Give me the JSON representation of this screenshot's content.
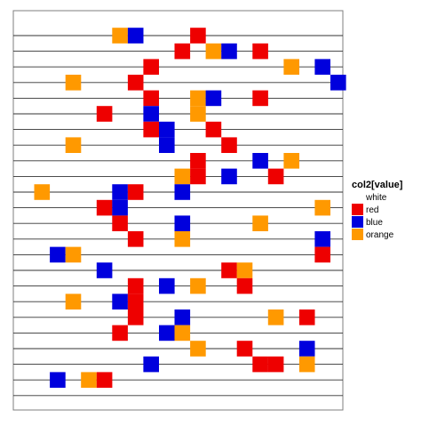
{
  "chart_data": {
    "type": "heatmap",
    "title": "",
    "xlabel": "",
    "ylabel": "",
    "legend": {
      "title": "col2[value]",
      "position": "right",
      "entries": [
        {
          "label": "white",
          "color": "#FFFFFF"
        },
        {
          "label": "red",
          "color": "#EE0000"
        },
        {
          "label": "blue",
          "color": "#0000DD"
        },
        {
          "label": "orange",
          "color": "#FF9900"
        }
      ]
    },
    "axes_visible": false,
    "horizontal_lines": 24,
    "rows": 24,
    "columns": 21,
    "cells": [
      {
        "row": 1,
        "col": 7,
        "value": "orange"
      },
      {
        "row": 1,
        "col": 8,
        "value": "blue"
      },
      {
        "row": 1,
        "col": 12,
        "value": "red"
      },
      {
        "row": 2,
        "col": 11,
        "value": "red"
      },
      {
        "row": 2,
        "col": 13,
        "value": "orange"
      },
      {
        "row": 2,
        "col": 14,
        "value": "blue"
      },
      {
        "row": 2,
        "col": 16,
        "value": "red"
      },
      {
        "row": 3,
        "col": 9,
        "value": "red"
      },
      {
        "row": 3,
        "col": 18,
        "value": "orange"
      },
      {
        "row": 3,
        "col": 20,
        "value": "blue"
      },
      {
        "row": 4,
        "col": 4,
        "value": "orange"
      },
      {
        "row": 4,
        "col": 8,
        "value": "red"
      },
      {
        "row": 4,
        "col": 21,
        "value": "blue"
      },
      {
        "row": 5,
        "col": 9,
        "value": "red"
      },
      {
        "row": 5,
        "col": 12,
        "value": "orange"
      },
      {
        "row": 5,
        "col": 13,
        "value": "blue"
      },
      {
        "row": 5,
        "col": 16,
        "value": "red"
      },
      {
        "row": 6,
        "col": 6,
        "value": "red"
      },
      {
        "row": 6,
        "col": 9,
        "value": "blue"
      },
      {
        "row": 6,
        "col": 12,
        "value": "orange"
      },
      {
        "row": 7,
        "col": 9,
        "value": "red"
      },
      {
        "row": 7,
        "col": 10,
        "value": "blue"
      },
      {
        "row": 7,
        "col": 13,
        "value": "red"
      },
      {
        "row": 8,
        "col": 4,
        "value": "orange"
      },
      {
        "row": 8,
        "col": 10,
        "value": "blue"
      },
      {
        "row": 8,
        "col": 14,
        "value": "red"
      },
      {
        "row": 9,
        "col": 12,
        "value": "red"
      },
      {
        "row": 9,
        "col": 16,
        "value": "blue"
      },
      {
        "row": 9,
        "col": 18,
        "value": "orange"
      },
      {
        "row": 10,
        "col": 11,
        "value": "orange"
      },
      {
        "row": 10,
        "col": 12,
        "value": "red"
      },
      {
        "row": 10,
        "col": 14,
        "value": "blue"
      },
      {
        "row": 10,
        "col": 17,
        "value": "red"
      },
      {
        "row": 11,
        "col": 2,
        "value": "orange"
      },
      {
        "row": 11,
        "col": 7,
        "value": "blue"
      },
      {
        "row": 11,
        "col": 8,
        "value": "red"
      },
      {
        "row": 11,
        "col": 11,
        "value": "blue"
      },
      {
        "row": 12,
        "col": 6,
        "value": "red"
      },
      {
        "row": 12,
        "col": 7,
        "value": "blue"
      },
      {
        "row": 12,
        "col": 20,
        "value": "orange"
      },
      {
        "row": 13,
        "col": 7,
        "value": "red"
      },
      {
        "row": 13,
        "col": 11,
        "value": "blue"
      },
      {
        "row": 13,
        "col": 16,
        "value": "orange"
      },
      {
        "row": 14,
        "col": 8,
        "value": "red"
      },
      {
        "row": 14,
        "col": 11,
        "value": "orange"
      },
      {
        "row": 14,
        "col": 20,
        "value": "blue"
      },
      {
        "row": 15,
        "col": 3,
        "value": "blue"
      },
      {
        "row": 15,
        "col": 4,
        "value": "orange"
      },
      {
        "row": 15,
        "col": 20,
        "value": "red"
      },
      {
        "row": 16,
        "col": 6,
        "value": "blue"
      },
      {
        "row": 16,
        "col": 14,
        "value": "red"
      },
      {
        "row": 16,
        "col": 15,
        "value": "orange"
      },
      {
        "row": 17,
        "col": 8,
        "value": "red"
      },
      {
        "row": 17,
        "col": 10,
        "value": "blue"
      },
      {
        "row": 17,
        "col": 12,
        "value": "orange"
      },
      {
        "row": 17,
        "col": 15,
        "value": "red"
      },
      {
        "row": 18,
        "col": 4,
        "value": "orange"
      },
      {
        "row": 18,
        "col": 7,
        "value": "blue"
      },
      {
        "row": 18,
        "col": 8,
        "value": "red"
      },
      {
        "row": 19,
        "col": 8,
        "value": "red"
      },
      {
        "row": 19,
        "col": 11,
        "value": "blue"
      },
      {
        "row": 19,
        "col": 17,
        "value": "orange"
      },
      {
        "row": 19,
        "col": 19,
        "value": "red"
      },
      {
        "row": 20,
        "col": 7,
        "value": "red"
      },
      {
        "row": 20,
        "col": 10,
        "value": "blue"
      },
      {
        "row": 20,
        "col": 11,
        "value": "orange"
      },
      {
        "row": 21,
        "col": 12,
        "value": "orange"
      },
      {
        "row": 21,
        "col": 15,
        "value": "red"
      },
      {
        "row": 21,
        "col": 19,
        "value": "blue"
      },
      {
        "row": 22,
        "col": 9,
        "value": "blue"
      },
      {
        "row": 22,
        "col": 16,
        "value": "red"
      },
      {
        "row": 22,
        "col": 17,
        "value": "red"
      },
      {
        "row": 22,
        "col": 19,
        "value": "orange"
      },
      {
        "row": 23,
        "col": 3,
        "value": "blue"
      },
      {
        "row": 23,
        "col": 5,
        "value": "orange"
      },
      {
        "row": 23,
        "col": 6,
        "value": "red"
      }
    ]
  }
}
